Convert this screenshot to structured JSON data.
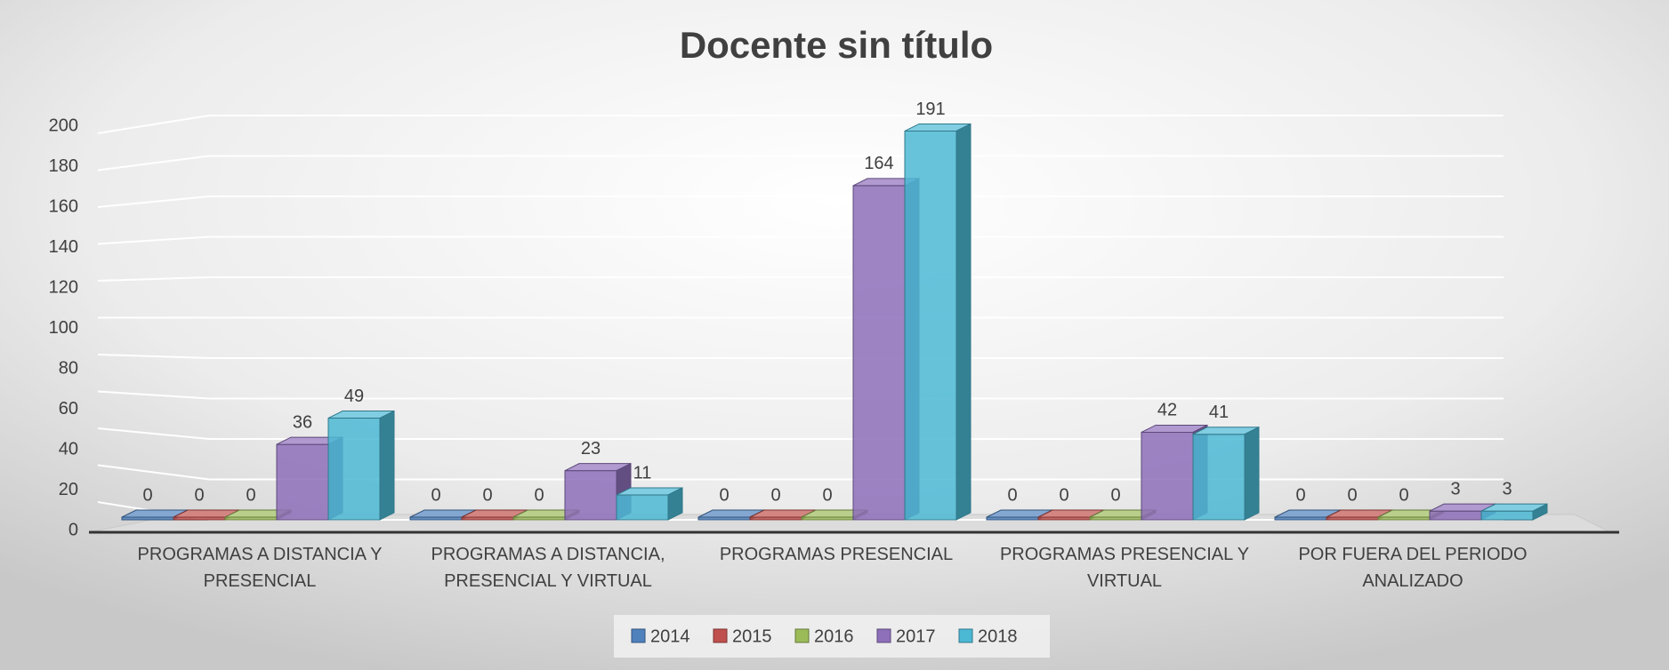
{
  "chart_data": {
    "type": "bar3d",
    "title": "Docente sin título",
    "categories": [
      "PROGRAMAS A DISTANCIA Y PRESENCIAL",
      "PROGRAMAS A DISTANCIA, PRESENCIAL Y VIRTUAL",
      "PROGRAMAS PRESENCIAL",
      "PROGRAMAS PRESENCIAL Y VIRTUAL",
      "POR FUERA DEL PERIODO ANALIZADO"
    ],
    "series": [
      {
        "name": "2014",
        "color": "#4f81bd",
        "values": [
          0,
          0,
          0,
          0,
          0
        ]
      },
      {
        "name": "2015",
        "color": "#c0504d",
        "values": [
          0,
          0,
          0,
          0,
          0
        ]
      },
      {
        "name": "2016",
        "color": "#9bbb59",
        "values": [
          0,
          0,
          0,
          0,
          0
        ]
      },
      {
        "name": "2017",
        "color": "#8e6fba",
        "values": [
          36,
          23,
          164,
          42,
          3
        ]
      },
      {
        "name": "2018",
        "color": "#4bb8d4",
        "values": [
          49,
          11,
          191,
          41,
          3
        ]
      }
    ],
    "ylim": [
      0,
      200
    ],
    "yticks": [
      0,
      20,
      40,
      60,
      80,
      100,
      120,
      140,
      160,
      180,
      200
    ],
    "grid": true,
    "legend": "bottom"
  }
}
